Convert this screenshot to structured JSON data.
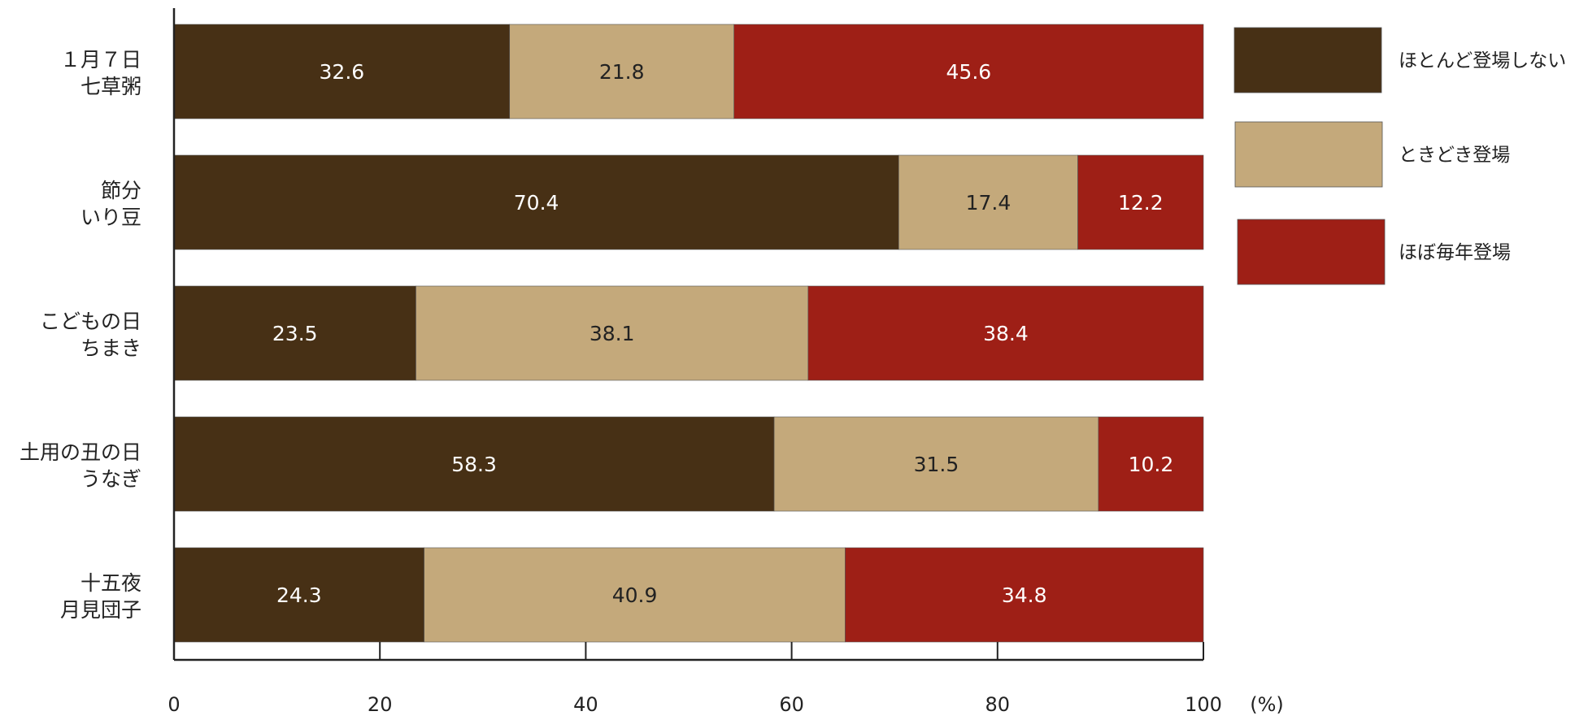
{
  "chart_data": {
    "type": "bar",
    "orientation": "horizontal",
    "stacked": true,
    "categories": [
      [
        "１月７日",
        "七草粥"
      ],
      [
        "節分",
        "いり豆"
      ],
      [
        "こどもの日",
        "ちまき"
      ],
      [
        "土用の丑の日",
        "うなぎ"
      ],
      [
        "十五夜",
        "月見団子"
      ]
    ],
    "series": [
      {
        "name": "ほとんど登場しない",
        "color": "#473015",
        "label_color": "#ffffff",
        "values": [
          32.6,
          70.4,
          23.5,
          58.3,
          24.3
        ]
      },
      {
        "name": "ときどき登場",
        "color": "#c4a97b",
        "label_color": "#222222",
        "values": [
          21.8,
          17.4,
          38.1,
          31.5,
          40.9
        ]
      },
      {
        "name": "ほぼ毎年登場",
        "color": "#9e1f16",
        "label_color": "#ffffff",
        "values": [
          45.6,
          12.2,
          38.4,
          10.2,
          34.8
        ]
      }
    ],
    "xlim": [
      0,
      100
    ],
    "xticks": [
      "0",
      "20",
      "40",
      "60",
      "80",
      "100"
    ],
    "x_unit": "(%)",
    "legend_position": "right",
    "grid": false
  }
}
